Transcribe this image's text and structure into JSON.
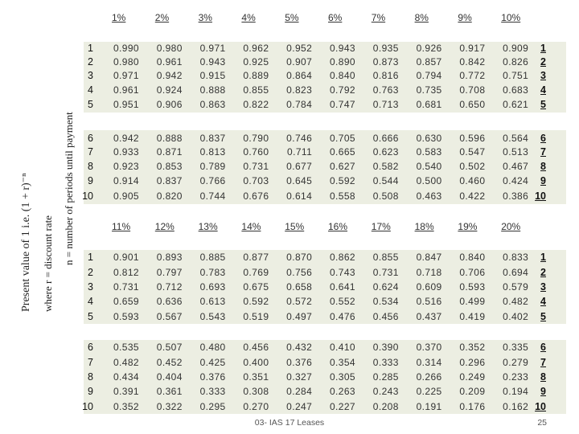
{
  "side_labels": [
    "Present value of 1 i.e. (1 + r)⁻ⁿ",
    "where     r = discount rate",
    "n = number of periods until payment"
  ],
  "tables": [
    {
      "headers": [
        "1%",
        "2%",
        "3%",
        "4%",
        "5%",
        "6%",
        "7%",
        "8%",
        "9%",
        "10%"
      ],
      "rows": [
        {
          "period": "1",
          "values": [
            "0.990",
            "0.980",
            "0.971",
            "0.962",
            "0.952",
            "0.943",
            "0.935",
            "0.926",
            "0.917",
            "0.909"
          ]
        },
        {
          "period": "2",
          "values": [
            "0.980",
            "0.961",
            "0.943",
            "0.925",
            "0.907",
            "0.890",
            "0.873",
            "0.857",
            "0.842",
            "0.826"
          ]
        },
        {
          "period": "3",
          "values": [
            "0.971",
            "0.942",
            "0.915",
            "0.889",
            "0.864",
            "0.840",
            "0.816",
            "0.794",
            "0.772",
            "0.751"
          ]
        },
        {
          "period": "4",
          "values": [
            "0.961",
            "0.924",
            "0.888",
            "0.855",
            "0.823",
            "0.792",
            "0.763",
            "0.735",
            "0.708",
            "0.683"
          ]
        },
        {
          "period": "5",
          "values": [
            "0.951",
            "0.906",
            "0.863",
            "0.822",
            "0.784",
            "0.747",
            "0.713",
            "0.681",
            "0.650",
            "0.621"
          ]
        },
        {
          "period": "6",
          "values": [
            "0.942",
            "0.888",
            "0.837",
            "0.790",
            "0.746",
            "0.705",
            "0.666",
            "0.630",
            "0.596",
            "0.564"
          ]
        },
        {
          "period": "7",
          "values": [
            "0.933",
            "0.871",
            "0.813",
            "0.760",
            "0.711",
            "0.665",
            "0.623",
            "0.583",
            "0.547",
            "0.513"
          ]
        },
        {
          "period": "8",
          "values": [
            "0.923",
            "0.853",
            "0.789",
            "0.731",
            "0.677",
            "0.627",
            "0.582",
            "0.540",
            "0.502",
            "0.467"
          ]
        },
        {
          "period": "9",
          "values": [
            "0.914",
            "0.837",
            "0.766",
            "0.703",
            "0.645",
            "0.592",
            "0.544",
            "0.500",
            "0.460",
            "0.424"
          ]
        },
        {
          "period": "10",
          "values": [
            "0.905",
            "0.820",
            "0.744",
            "0.676",
            "0.614",
            "0.558",
            "0.508",
            "0.463",
            "0.422",
            "0.386"
          ]
        }
      ]
    },
    {
      "headers": [
        "11%",
        "12%",
        "13%",
        "14%",
        "15%",
        "16%",
        "17%",
        "18%",
        "19%",
        "20%"
      ],
      "rows": [
        {
          "period": "1",
          "values": [
            "0.901",
            "0.893",
            "0.885",
            "0.877",
            "0.870",
            "0.862",
            "0.855",
            "0.847",
            "0.840",
            "0.833"
          ]
        },
        {
          "period": "2",
          "values": [
            "0.812",
            "0.797",
            "0.783",
            "0.769",
            "0.756",
            "0.743",
            "0.731",
            "0.718",
            "0.706",
            "0.694"
          ]
        },
        {
          "period": "3",
          "values": [
            "0.731",
            "0.712",
            "0.693",
            "0.675",
            "0.658",
            "0.641",
            "0.624",
            "0.609",
            "0.593",
            "0.579"
          ]
        },
        {
          "period": "4",
          "values": [
            "0.659",
            "0.636",
            "0.613",
            "0.592",
            "0.572",
            "0.552",
            "0.534",
            "0.516",
            "0.499",
            "0.482"
          ]
        },
        {
          "period": "5",
          "values": [
            "0.593",
            "0.567",
            "0.543",
            "0.519",
            "0.497",
            "0.476",
            "0.456",
            "0.437",
            "0.419",
            "0.402"
          ]
        },
        {
          "period": "6",
          "values": [
            "0.535",
            "0.507",
            "0.480",
            "0.456",
            "0.432",
            "0.410",
            "0.390",
            "0.370",
            "0.352",
            "0.335"
          ]
        },
        {
          "period": "7",
          "values": [
            "0.482",
            "0.452",
            "0.425",
            "0.400",
            "0.376",
            "0.354",
            "0.333",
            "0.314",
            "0.296",
            "0.279"
          ]
        },
        {
          "period": "8",
          "values": [
            "0.434",
            "0.404",
            "0.376",
            "0.351",
            "0.327",
            "0.305",
            "0.285",
            "0.266",
            "0.249",
            "0.233"
          ]
        },
        {
          "period": "9",
          "values": [
            "0.391",
            "0.361",
            "0.333",
            "0.308",
            "0.284",
            "0.263",
            "0.243",
            "0.225",
            "0.209",
            "0.194"
          ]
        },
        {
          "period": "10",
          "values": [
            "0.352",
            "0.322",
            "0.295",
            "0.270",
            "0.247",
            "0.227",
            "0.208",
            "0.191",
            "0.176",
            "0.162"
          ]
        }
      ]
    }
  ],
  "footer": {
    "title": "03- IAS 17 Leases",
    "page": "25"
  }
}
